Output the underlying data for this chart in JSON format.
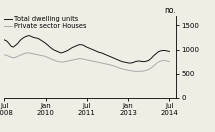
{
  "ylabel": "no.",
  "ylim": [
    0,
    1700
  ],
  "yticks": [
    0,
    500,
    1000,
    1500
  ],
  "background_color": "#f0ede4",
  "legend_labels": [
    "Total dwelling units",
    "Private sector Houses"
  ],
  "line_colors": [
    "#111111",
    "#aaaaaa"
  ],
  "x_tick_positions": [
    0,
    18,
    36,
    54,
    72
  ],
  "x_tick_top": [
    "Jul",
    "Jan",
    "Jul",
    "Jan",
    "Jul"
  ],
  "x_tick_bottom": [
    "2008",
    "2010",
    "2011",
    "2013",
    "2014"
  ],
  "xlim": [
    0,
    75
  ],
  "total_dwelling": [
    1200,
    1180,
    1130,
    1070,
    1050,
    1090,
    1130,
    1190,
    1230,
    1260,
    1280,
    1290,
    1270,
    1250,
    1240,
    1230,
    1200,
    1170,
    1140,
    1100,
    1060,
    1020,
    990,
    970,
    950,
    930,
    940,
    960,
    980,
    1010,
    1040,
    1060,
    1080,
    1100,
    1100,
    1090,
    1060,
    1040,
    1020,
    1000,
    980,
    960,
    940,
    930,
    910,
    890,
    870,
    850,
    830,
    810,
    790,
    770,
    750,
    740,
    730,
    720,
    720,
    730,
    750,
    760,
    760,
    750,
    750,
    760,
    780,
    820,
    870,
    910,
    950,
    970,
    980,
    980,
    970,
    960
  ],
  "private_houses": [
    890,
    880,
    860,
    840,
    830,
    840,
    860,
    880,
    900,
    920,
    930,
    930,
    920,
    910,
    900,
    890,
    880,
    870,
    860,
    840,
    820,
    800,
    780,
    760,
    750,
    740,
    740,
    750,
    760,
    770,
    780,
    790,
    800,
    810,
    810,
    800,
    790,
    780,
    770,
    760,
    750,
    740,
    730,
    720,
    710,
    700,
    690,
    680,
    665,
    650,
    630,
    615,
    600,
    590,
    578,
    568,
    558,
    552,
    548,
    548,
    548,
    550,
    558,
    570,
    590,
    620,
    660,
    700,
    740,
    760,
    770,
    770,
    760,
    750
  ]
}
